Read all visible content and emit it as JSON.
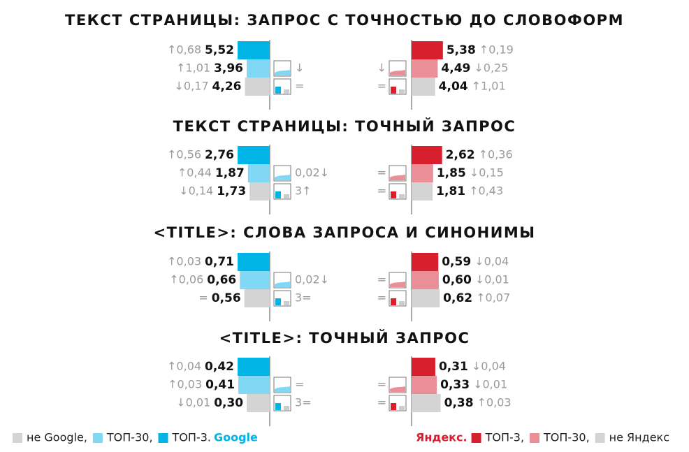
{
  "sections": [
    {
      "title": "ТЕКСТ СТРАНИЦЫ: ЗАПРОС С ТОЧНОСТЬЮ ДО СЛОВОФОРМ",
      "google": [
        {
          "value": 5.52,
          "label": "5,52",
          "delta": "↑0,68"
        },
        {
          "value": 3.96,
          "label": "3,96",
          "delta": "↑1,01",
          "mini": "↓"
        },
        {
          "value": 4.26,
          "label": "4,26",
          "delta": "↓0,17",
          "mini": "="
        }
      ],
      "yandex": [
        {
          "value": 5.38,
          "label": "5,38",
          "delta": "↑0,19"
        },
        {
          "value": 4.49,
          "label": "4,49",
          "delta": "↓0,25",
          "mini": "↓"
        },
        {
          "value": 4.04,
          "label": "4,04",
          "delta": "↑1,01",
          "mini": "="
        }
      ]
    },
    {
      "title": "ТЕКСТ СТРАНИЦЫ: ТОЧНЫЙ ЗАПРОС",
      "google": [
        {
          "value": 2.76,
          "label": "2,76",
          "delta": "↑0,56"
        },
        {
          "value": 1.87,
          "label": "1,87",
          "delta": "↑0,44",
          "mini": "0,02↓"
        },
        {
          "value": 1.73,
          "label": "1,73",
          "delta": "↓0,14",
          "mini": "3↑"
        }
      ],
      "yandex": [
        {
          "value": 2.62,
          "label": "2,62",
          "delta": "↑0,36"
        },
        {
          "value": 1.85,
          "label": "1,85",
          "delta": "↓0,15",
          "mini": "="
        },
        {
          "value": 1.81,
          "label": "1,81",
          "delta": "↑0,43",
          "mini": "="
        }
      ]
    },
    {
      "title": "<TITLE>: СЛОВА ЗАПРОСА И СИНОНИМЫ",
      "google": [
        {
          "value": 0.71,
          "label": "0,71",
          "delta": "↑0,03"
        },
        {
          "value": 0.66,
          "label": "0,66",
          "delta": "↑0,06",
          "mini": "0,02↓"
        },
        {
          "value": 0.56,
          "label": "0,56",
          "delta": "=",
          "mini": "3="
        }
      ],
      "yandex": [
        {
          "value": 0.59,
          "label": "0,59",
          "delta": "↓0,04"
        },
        {
          "value": 0.6,
          "label": "0,60",
          "delta": "↓0,01",
          "mini": "="
        },
        {
          "value": 0.62,
          "label": "0,62",
          "delta": "↑0,07",
          "mini": "="
        }
      ]
    },
    {
      "title": "<TITLE>: ТОЧНЫЙ ЗАПРОС",
      "google": [
        {
          "value": 0.42,
          "label": "0,42",
          "delta": "↑0,04"
        },
        {
          "value": 0.41,
          "label": "0,41",
          "delta": "↑0,03",
          "mini": "="
        },
        {
          "value": 0.3,
          "label": "0,30",
          "delta": "↓0,01",
          "mini": "3="
        }
      ],
      "yandex": [
        {
          "value": 0.31,
          "label": "0,31",
          "delta": "↓0,04"
        },
        {
          "value": 0.33,
          "label": "0,33",
          "delta": "↓0,01",
          "mini": "="
        },
        {
          "value": 0.38,
          "label": "0,38",
          "delta": "↑0,03",
          "mini": "="
        }
      ]
    }
  ],
  "legend": {
    "google": [
      {
        "label": "не Google,",
        "color": "#d4d4d4"
      },
      {
        "label": "ТОП-30,",
        "color": "#80d8f5"
      },
      {
        "label": "ТОП-3.",
        "color": "#00b4e6"
      }
    ],
    "google_brand": "Google",
    "yandex_brand": "Яндекс.",
    "yandex": [
      {
        "label": "ТОП-3,",
        "color": "#d81f2e"
      },
      {
        "label": "ТОП-30,",
        "color": "#ea8f97"
      },
      {
        "label": "не Яндекс",
        "color": "#d4d4d4"
      }
    ]
  }
}
